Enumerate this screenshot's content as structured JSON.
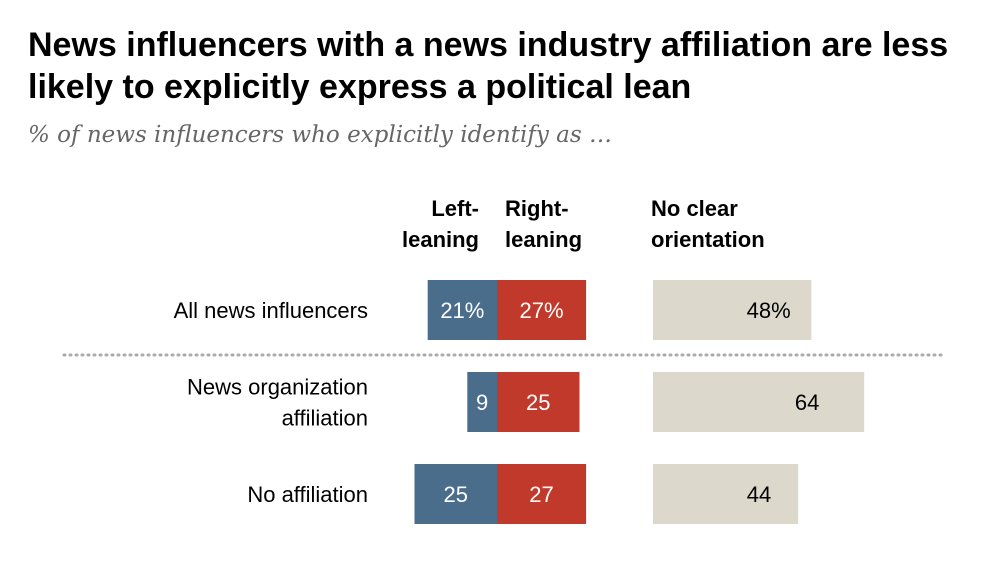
{
  "title": "News influencers with a news industry affiliation are less likely to explicitly express a political lean",
  "subtitle": "% of news influencers who explicitly identify as …",
  "colors": {
    "left": "#4a6d8c",
    "right": "#c0392b",
    "neutral": "#dcd9cc"
  },
  "chart_data": {
    "type": "bar",
    "orientation": "horizontal",
    "categories": [
      [
        "All news influencers"
      ],
      [
        "News organization",
        "affiliation"
      ],
      [
        "No affiliation"
      ]
    ],
    "series": [
      {
        "name": "Left-leaning",
        "header": [
          "Left-",
          "leaning"
        ],
        "values": [
          21,
          9,
          25
        ],
        "labels": [
          "21%",
          "9",
          "25"
        ]
      },
      {
        "name": "Right-leaning",
        "header": [
          "Right-",
          "leaning"
        ],
        "values": [
          27,
          25,
          27
        ],
        "labels": [
          "27%",
          "25",
          "27"
        ]
      },
      {
        "name": "No clear orientation",
        "header": [
          "No clear",
          "orientation"
        ],
        "values": [
          48,
          64,
          44
        ],
        "labels": [
          "48%",
          "64",
          "44"
        ]
      }
    ],
    "units": "%"
  }
}
